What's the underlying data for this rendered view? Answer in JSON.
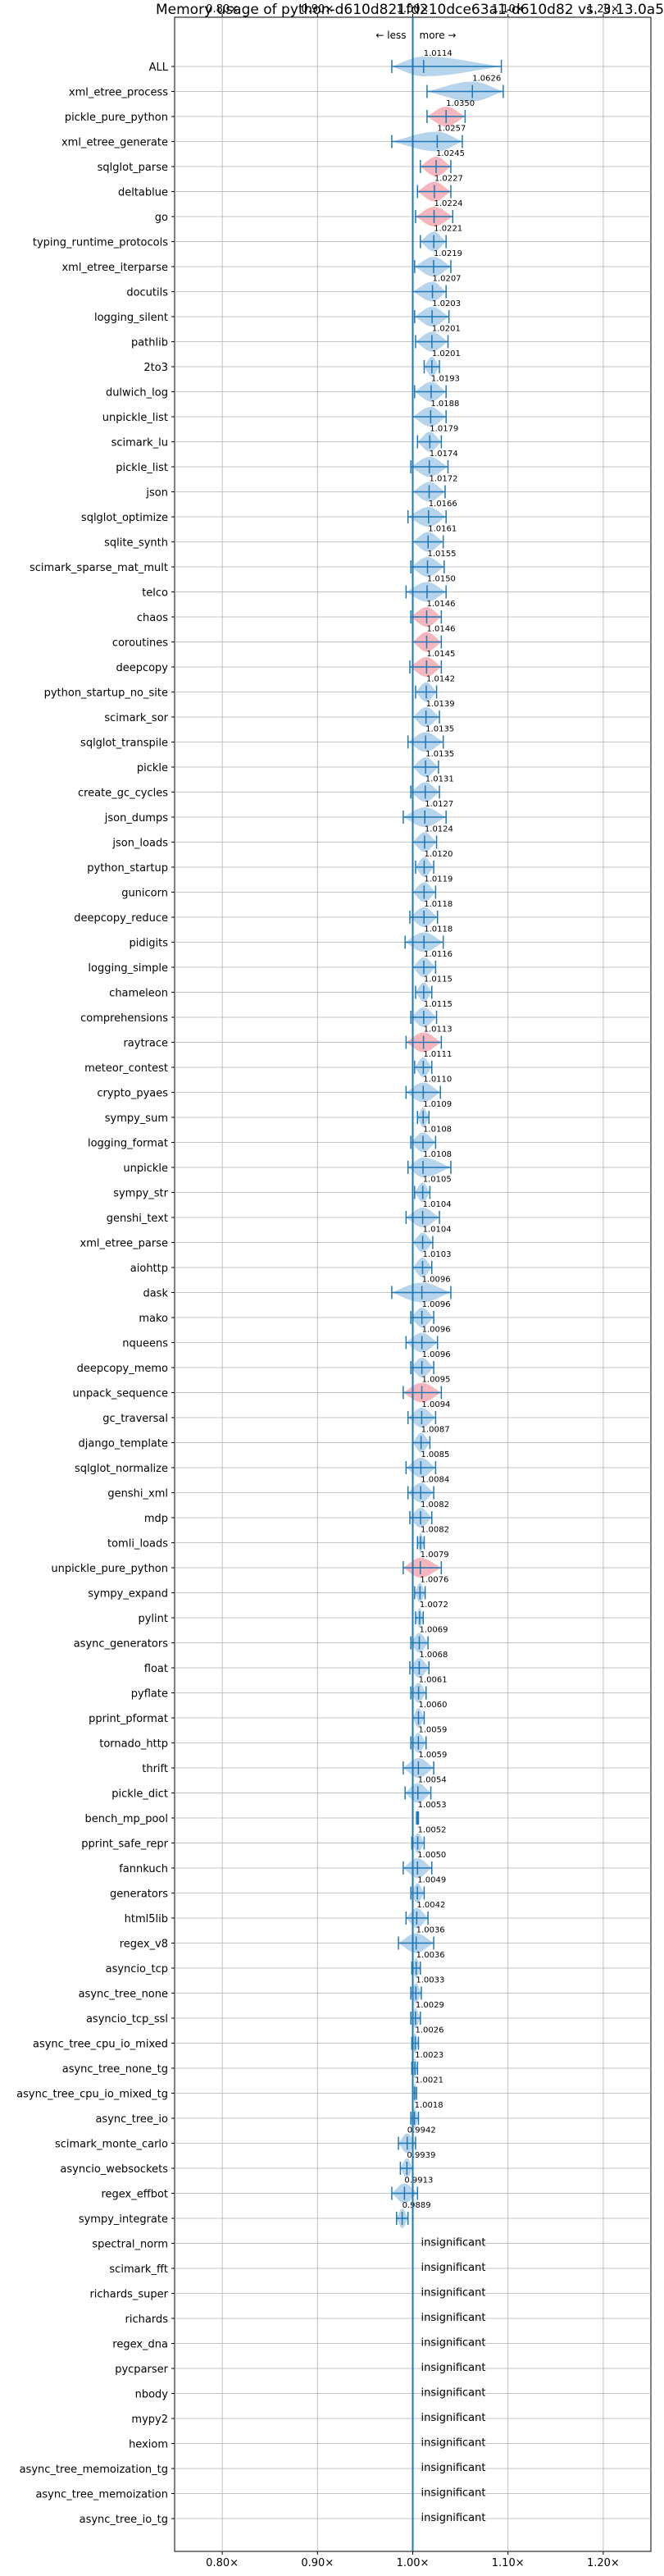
{
  "chart_data": {
    "type": "violin",
    "title": "Memory usage of python-d610d821fd210dce63a1-d610d82 vs. 3.13.0a5",
    "xlim": [
      0.75,
      1.25
    ],
    "x_ticks": [
      0.8,
      0.9,
      1.0,
      1.1,
      1.2
    ],
    "x_tick_labels": [
      "0.80×",
      "0.90×",
      "1.00×",
      "1.10×",
      "1.20×"
    ],
    "less_label": "← less",
    "more_label": "more →",
    "reference_line": 1.0,
    "colors": {
      "improvement": "#a9cce8",
      "regression": "#f4a9b3",
      "line": "#1f77b4",
      "grid": "#b0b0b0"
    },
    "benchmarks": [
      {
        "name": "ALL",
        "value": 1.0114,
        "label": "1.0114",
        "lo": 0.978,
        "hi": 1.093,
        "color": "blue"
      },
      {
        "name": "xml_etree_process",
        "value": 1.0626,
        "label": "1.0626",
        "lo": 1.015,
        "hi": 1.095,
        "color": "blue"
      },
      {
        "name": "pickle_pure_python",
        "value": 1.035,
        "label": "1.0350",
        "lo": 1.015,
        "hi": 1.055,
        "color": "red"
      },
      {
        "name": "xml_etree_generate",
        "value": 1.0257,
        "label": "1.0257",
        "lo": 0.978,
        "hi": 1.052,
        "color": "blue"
      },
      {
        "name": "sqlglot_parse",
        "value": 1.0245,
        "label": "1.0245",
        "lo": 1.008,
        "hi": 1.04,
        "color": "red"
      },
      {
        "name": "deltablue",
        "value": 1.0227,
        "label": "1.0227",
        "lo": 1.005,
        "hi": 1.04,
        "color": "red"
      },
      {
        "name": "go",
        "value": 1.0224,
        "label": "1.0224",
        "lo": 1.003,
        "hi": 1.042,
        "color": "red"
      },
      {
        "name": "typing_runtime_protocols",
        "value": 1.0221,
        "label": "1.0221",
        "lo": 1.008,
        "hi": 1.035,
        "color": "blue"
      },
      {
        "name": "xml_etree_iterparse",
        "value": 1.0219,
        "label": "1.0219",
        "lo": 1.002,
        "hi": 1.04,
        "color": "blue"
      },
      {
        "name": "docutils",
        "value": 1.0207,
        "label": "1.0207",
        "lo": 1.0,
        "hi": 1.035,
        "color": "blue"
      },
      {
        "name": "logging_silent",
        "value": 1.0203,
        "label": "1.0203",
        "lo": 1.002,
        "hi": 1.038,
        "color": "blue"
      },
      {
        "name": "pathlib",
        "value": 1.0201,
        "label": "1.0201",
        "lo": 1.003,
        "hi": 1.037,
        "color": "blue"
      },
      {
        "name": "2to3",
        "value": 1.0201,
        "label": "1.0201",
        "lo": 1.012,
        "hi": 1.028,
        "color": "blue"
      },
      {
        "name": "dulwich_log",
        "value": 1.0193,
        "label": "1.0193",
        "lo": 1.002,
        "hi": 1.035,
        "color": "blue"
      },
      {
        "name": "unpickle_list",
        "value": 1.0188,
        "label": "1.0188",
        "lo": 1.0,
        "hi": 1.035,
        "color": "blue"
      },
      {
        "name": "scimark_lu",
        "value": 1.0179,
        "label": "1.0179",
        "lo": 1.005,
        "hi": 1.03,
        "color": "blue"
      },
      {
        "name": "pickle_list",
        "value": 1.0174,
        "label": "1.0174",
        "lo": 0.998,
        "hi": 1.037,
        "color": "blue"
      },
      {
        "name": "json",
        "value": 1.0172,
        "label": "1.0172",
        "lo": 1.0,
        "hi": 1.034,
        "color": "blue"
      },
      {
        "name": "sqlglot_optimize",
        "value": 1.0166,
        "label": "1.0166",
        "lo": 0.995,
        "hi": 1.035,
        "color": "blue"
      },
      {
        "name": "sqlite_synth",
        "value": 1.0161,
        "label": "1.0161",
        "lo": 1.0,
        "hi": 1.032,
        "color": "blue"
      },
      {
        "name": "scimark_sparse_mat_mult",
        "value": 1.0155,
        "label": "1.0155",
        "lo": 0.998,
        "hi": 1.033,
        "color": "blue"
      },
      {
        "name": "telco",
        "value": 1.015,
        "label": "1.0150",
        "lo": 0.993,
        "hi": 1.035,
        "color": "blue"
      },
      {
        "name": "chaos",
        "value": 1.0146,
        "label": "1.0146",
        "lo": 0.998,
        "hi": 1.03,
        "color": "red"
      },
      {
        "name": "coroutines",
        "value": 1.0146,
        "label": "1.0146",
        "lo": 1.0,
        "hi": 1.03,
        "color": "red"
      },
      {
        "name": "deepcopy",
        "value": 1.0145,
        "label": "1.0145",
        "lo": 0.997,
        "hi": 1.03,
        "color": "red"
      },
      {
        "name": "python_startup_no_site",
        "value": 1.0142,
        "label": "1.0142",
        "lo": 1.003,
        "hi": 1.025,
        "color": "blue"
      },
      {
        "name": "scimark_sor",
        "value": 1.0139,
        "label": "1.0139",
        "lo": 1.0,
        "hi": 1.028,
        "color": "blue"
      },
      {
        "name": "sqlglot_transpile",
        "value": 1.0135,
        "label": "1.0135",
        "lo": 0.995,
        "hi": 1.032,
        "color": "blue"
      },
      {
        "name": "pickle",
        "value": 1.0135,
        "label": "1.0135",
        "lo": 1.0,
        "hi": 1.027,
        "color": "blue"
      },
      {
        "name": "create_gc_cycles",
        "value": 1.0131,
        "label": "1.0131",
        "lo": 0.998,
        "hi": 1.028,
        "color": "blue"
      },
      {
        "name": "json_dumps",
        "value": 1.0127,
        "label": "1.0127",
        "lo": 0.99,
        "hi": 1.035,
        "color": "blue"
      },
      {
        "name": "json_loads",
        "value": 1.0124,
        "label": "1.0124",
        "lo": 1.0,
        "hi": 1.025,
        "color": "blue"
      },
      {
        "name": "python_startup",
        "value": 1.012,
        "label": "1.0120",
        "lo": 1.003,
        "hi": 1.022,
        "color": "blue"
      },
      {
        "name": "gunicorn",
        "value": 1.0119,
        "label": "1.0119",
        "lo": 1.0,
        "hi": 1.024,
        "color": "blue"
      },
      {
        "name": "deepcopy_reduce",
        "value": 1.0118,
        "label": "1.0118",
        "lo": 0.997,
        "hi": 1.026,
        "color": "blue"
      },
      {
        "name": "pidigits",
        "value": 1.0118,
        "label": "1.0118",
        "lo": 0.992,
        "hi": 1.032,
        "color": "blue"
      },
      {
        "name": "logging_simple",
        "value": 1.0116,
        "label": "1.0116",
        "lo": 1.0,
        "hi": 1.024,
        "color": "blue"
      },
      {
        "name": "chameleon",
        "value": 1.0115,
        "label": "1.0115",
        "lo": 1.003,
        "hi": 1.02,
        "color": "blue"
      },
      {
        "name": "comprehensions",
        "value": 1.0115,
        "label": "1.0115",
        "lo": 0.998,
        "hi": 1.025,
        "color": "blue"
      },
      {
        "name": "raytrace",
        "value": 1.0113,
        "label": "1.0113",
        "lo": 0.993,
        "hi": 1.03,
        "color": "red"
      },
      {
        "name": "meteor_contest",
        "value": 1.0111,
        "label": "1.0111",
        "lo": 1.002,
        "hi": 1.02,
        "color": "blue"
      },
      {
        "name": "crypto_pyaes",
        "value": 1.011,
        "label": "1.0110",
        "lo": 0.993,
        "hi": 1.029,
        "color": "blue"
      },
      {
        "name": "sympy_sum",
        "value": 1.0109,
        "label": "1.0109",
        "lo": 1.005,
        "hi": 1.017,
        "color": "blue"
      },
      {
        "name": "logging_format",
        "value": 1.0108,
        "label": "1.0108",
        "lo": 0.998,
        "hi": 1.024,
        "color": "blue"
      },
      {
        "name": "unpickle",
        "value": 1.0108,
        "label": "1.0108",
        "lo": 0.995,
        "hi": 1.04,
        "color": "blue"
      },
      {
        "name": "sympy_str",
        "value": 1.0105,
        "label": "1.0105",
        "lo": 1.002,
        "hi": 1.018,
        "color": "blue"
      },
      {
        "name": "genshi_text",
        "value": 1.0104,
        "label": "1.0104",
        "lo": 0.993,
        "hi": 1.028,
        "color": "blue"
      },
      {
        "name": "xml_etree_parse",
        "value": 1.0104,
        "label": "1.0104",
        "lo": 1.0,
        "hi": 1.021,
        "color": "blue"
      },
      {
        "name": "aiohttp",
        "value": 1.0103,
        "label": "1.0103",
        "lo": 1.0,
        "hi": 1.02,
        "color": "blue"
      },
      {
        "name": "dask",
        "value": 1.0096,
        "label": "1.0096",
        "lo": 0.978,
        "hi": 1.04,
        "color": "blue"
      },
      {
        "name": "mako",
        "value": 1.0096,
        "label": "1.0096",
        "lo": 0.998,
        "hi": 1.022,
        "color": "blue"
      },
      {
        "name": "nqueens",
        "value": 1.0096,
        "label": "1.0096",
        "lo": 0.993,
        "hi": 1.026,
        "color": "blue"
      },
      {
        "name": "deepcopy_memo",
        "value": 1.0096,
        "label": "1.0096",
        "lo": 0.998,
        "hi": 1.022,
        "color": "blue"
      },
      {
        "name": "unpack_sequence",
        "value": 1.0095,
        "label": "1.0095",
        "lo": 0.99,
        "hi": 1.03,
        "color": "red"
      },
      {
        "name": "gc_traversal",
        "value": 1.0094,
        "label": "1.0094",
        "lo": 0.995,
        "hi": 1.024,
        "color": "blue"
      },
      {
        "name": "django_template",
        "value": 1.0087,
        "label": "1.0087",
        "lo": 1.0,
        "hi": 1.018,
        "color": "blue"
      },
      {
        "name": "sqlglot_normalize",
        "value": 1.0085,
        "label": "1.0085",
        "lo": 0.993,
        "hi": 1.024,
        "color": "blue"
      },
      {
        "name": "genshi_xml",
        "value": 1.0084,
        "label": "1.0084",
        "lo": 0.995,
        "hi": 1.022,
        "color": "blue"
      },
      {
        "name": "mdp",
        "value": 1.0082,
        "label": "1.0082",
        "lo": 0.997,
        "hi": 1.02,
        "color": "blue"
      },
      {
        "name": "tomli_loads",
        "value": 1.0082,
        "label": "1.0082",
        "lo": 1.005,
        "hi": 1.012,
        "color": "blue"
      },
      {
        "name": "unpickle_pure_python",
        "value": 1.0079,
        "label": "1.0079",
        "lo": 0.99,
        "hi": 1.03,
        "color": "red"
      },
      {
        "name": "sympy_expand",
        "value": 1.0076,
        "label": "1.0076",
        "lo": 1.002,
        "hi": 1.013,
        "color": "blue"
      },
      {
        "name": "pylint",
        "value": 1.0072,
        "label": "1.0072",
        "lo": 1.003,
        "hi": 1.011,
        "color": "blue"
      },
      {
        "name": "async_generators",
        "value": 1.0069,
        "label": "1.0069",
        "lo": 0.998,
        "hi": 1.016,
        "color": "blue"
      },
      {
        "name": "float",
        "value": 1.0068,
        "label": "1.0068",
        "lo": 0.997,
        "hi": 1.017,
        "color": "blue"
      },
      {
        "name": "pyflate",
        "value": 1.0061,
        "label": "1.0061",
        "lo": 0.998,
        "hi": 1.014,
        "color": "blue"
      },
      {
        "name": "pprint_pformat",
        "value": 1.006,
        "label": "1.0060",
        "lo": 1.0,
        "hi": 1.012,
        "color": "blue"
      },
      {
        "name": "tornado_http",
        "value": 1.0059,
        "label": "1.0059",
        "lo": 0.998,
        "hi": 1.014,
        "color": "blue"
      },
      {
        "name": "thrift",
        "value": 1.0059,
        "label": "1.0059",
        "lo": 0.99,
        "hi": 1.022,
        "color": "blue"
      },
      {
        "name": "pickle_dict",
        "value": 1.0054,
        "label": "1.0054",
        "lo": 0.992,
        "hi": 1.019,
        "color": "blue"
      },
      {
        "name": "bench_mp_pool",
        "value": 1.0053,
        "label": "1.0053",
        "lo": 1.004,
        "hi": 1.006,
        "color": "blue"
      },
      {
        "name": "pprint_safe_repr",
        "value": 1.0052,
        "label": "1.0052",
        "lo": 0.999,
        "hi": 1.012,
        "color": "blue"
      },
      {
        "name": "fannkuch",
        "value": 1.005,
        "label": "1.0050",
        "lo": 0.99,
        "hi": 1.02,
        "color": "blue"
      },
      {
        "name": "generators",
        "value": 1.0049,
        "label": "1.0049",
        "lo": 0.998,
        "hi": 1.012,
        "color": "blue"
      },
      {
        "name": "html5lib",
        "value": 1.0042,
        "label": "1.0042",
        "lo": 0.993,
        "hi": 1.016,
        "color": "blue"
      },
      {
        "name": "regex_v8",
        "value": 1.0036,
        "label": "1.0036",
        "lo": 0.985,
        "hi": 1.022,
        "color": "blue"
      },
      {
        "name": "asyncio_tcp",
        "value": 1.0036,
        "label": "1.0036",
        "lo": 0.999,
        "hi": 1.008,
        "color": "blue"
      },
      {
        "name": "async_tree_none",
        "value": 1.0033,
        "label": "1.0033",
        "lo": 0.998,
        "hi": 1.009,
        "color": "blue"
      },
      {
        "name": "asyncio_tcp_ssl",
        "value": 1.0029,
        "label": "1.0029",
        "lo": 0.998,
        "hi": 1.008,
        "color": "blue"
      },
      {
        "name": "async_tree_cpu_io_mixed",
        "value": 1.0026,
        "label": "1.0026",
        "lo": 0.999,
        "hi": 1.006,
        "color": "blue"
      },
      {
        "name": "async_tree_none_tg",
        "value": 1.0023,
        "label": "1.0023",
        "lo": 0.999,
        "hi": 1.005,
        "color": "blue"
      },
      {
        "name": "async_tree_cpu_io_mixed_tg",
        "value": 1.0021,
        "label": "1.0021",
        "lo": 1.0,
        "hi": 1.004,
        "color": "blue"
      },
      {
        "name": "async_tree_io",
        "value": 1.0018,
        "label": "1.0018",
        "lo": 0.998,
        "hi": 1.006,
        "color": "blue"
      },
      {
        "name": "scimark_monte_carlo",
        "value": 0.9942,
        "label": "0.9942",
        "lo": 0.985,
        "hi": 1.003,
        "color": "blue"
      },
      {
        "name": "asyncio_websockets",
        "value": 0.9939,
        "label": "0.9939",
        "lo": 0.987,
        "hi": 1.0,
        "color": "blue"
      },
      {
        "name": "regex_effbot",
        "value": 0.9913,
        "label": "0.9913",
        "lo": 0.978,
        "hi": 1.005,
        "color": "blue"
      },
      {
        "name": "sympy_integrate",
        "value": 0.9889,
        "label": "0.9889",
        "lo": 0.983,
        "hi": 0.995,
        "color": "blue"
      },
      {
        "name": "spectral_norm",
        "insignificant": true
      },
      {
        "name": "scimark_fft",
        "insignificant": true
      },
      {
        "name": "richards_super",
        "insignificant": true
      },
      {
        "name": "richards",
        "insignificant": true
      },
      {
        "name": "regex_dna",
        "insignificant": true
      },
      {
        "name": "pycparser",
        "insignificant": true
      },
      {
        "name": "nbody",
        "insignificant": true
      },
      {
        "name": "mypy2",
        "insignificant": true
      },
      {
        "name": "hexiom",
        "insignificant": true
      },
      {
        "name": "async_tree_memoization_tg",
        "insignificant": true
      },
      {
        "name": "async_tree_memoization",
        "insignificant": true
      },
      {
        "name": "async_tree_io_tg",
        "insignificant": true
      }
    ],
    "insignificant_label": "insignificant",
    "grid": true
  }
}
